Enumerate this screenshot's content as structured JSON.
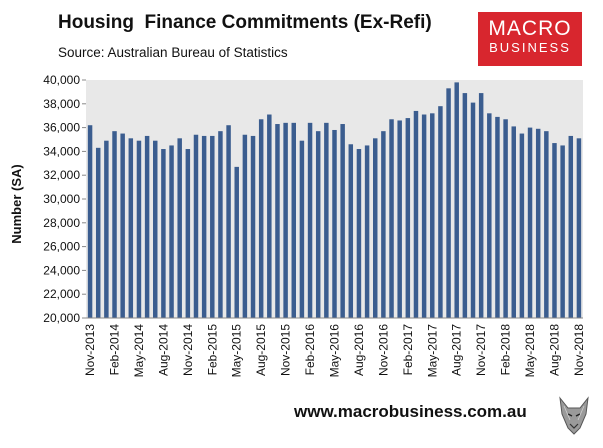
{
  "header": {
    "title": "Housing  Finance Commitments (Ex-Refi)",
    "subtitle": "Source: Australian Bureau of Statistics"
  },
  "logo": {
    "line1": "MACRO",
    "line2": "BUSINESS"
  },
  "footer": {
    "url": "www.macrobusiness.com.au"
  },
  "colors": {
    "bar": "#3b5d8f",
    "plot_bg": "#e8e8e8",
    "logo_bg": "#d8262e"
  },
  "chart_data": {
    "type": "bar",
    "ylabel": "Number (SA)",
    "xlabel": "",
    "ylim": [
      20000,
      40000
    ],
    "yticks": [
      20000,
      22000,
      24000,
      26000,
      28000,
      30000,
      32000,
      34000,
      36000,
      38000,
      40000
    ],
    "ytick_labels": [
      "20,000",
      "22,000",
      "24,000",
      "26,000",
      "28,000",
      "30,000",
      "32,000",
      "34,000",
      "36,000",
      "38,000",
      "40,000"
    ],
    "categories": [
      "Nov-2013",
      "Dec-2013",
      "Jan-2014",
      "Feb-2014",
      "Mar-2014",
      "Apr-2014",
      "May-2014",
      "Jun-2014",
      "Jul-2014",
      "Aug-2014",
      "Sep-2014",
      "Oct-2014",
      "Nov-2014",
      "Dec-2014",
      "Jan-2015",
      "Feb-2015",
      "Mar-2015",
      "Apr-2015",
      "May-2015",
      "Jun-2015",
      "Jul-2015",
      "Aug-2015",
      "Sep-2015",
      "Oct-2015",
      "Nov-2015",
      "Dec-2015",
      "Jan-2016",
      "Feb-2016",
      "Mar-2016",
      "Apr-2016",
      "May-2016",
      "Jun-2016",
      "Jul-2016",
      "Aug-2016",
      "Sep-2016",
      "Oct-2016",
      "Nov-2016",
      "Dec-2016",
      "Jan-2017",
      "Feb-2017",
      "Mar-2017",
      "Apr-2017",
      "May-2017",
      "Jun-2017",
      "Jul-2017",
      "Aug-2017",
      "Sep-2017",
      "Oct-2017",
      "Nov-2017",
      "Dec-2017",
      "Jan-2018",
      "Feb-2018",
      "Mar-2018",
      "Apr-2018",
      "May-2018",
      "Jun-2018",
      "Jul-2018",
      "Aug-2018",
      "Sep-2018",
      "Oct-2018",
      "Nov-2018"
    ],
    "x_tick_labels": [
      "Nov-2013",
      "Feb-2014",
      "May-2014",
      "Aug-2014",
      "Nov-2014",
      "Feb-2015",
      "May-2015",
      "Aug-2015",
      "Nov-2015",
      "Feb-2016",
      "May-2016",
      "Aug-2016",
      "Nov-2016",
      "Feb-2017",
      "May-2017",
      "Aug-2017",
      "Nov-2017",
      "Feb-2018",
      "May-2018",
      "Aug-2018",
      "Nov-2018"
    ],
    "values": [
      36200,
      34300,
      34900,
      35700,
      35500,
      35100,
      34900,
      35300,
      34900,
      34200,
      34500,
      35100,
      34200,
      35400,
      35300,
      35300,
      35700,
      36200,
      32700,
      35400,
      35300,
      36700,
      37100,
      36300,
      36400,
      36400,
      34900,
      36400,
      35700,
      36400,
      35800,
      36300,
      34600,
      34200,
      34500,
      35100,
      35700,
      36700,
      36600,
      36800,
      37400,
      37100,
      37200,
      37800,
      39300,
      39800,
      38900,
      38100,
      38900,
      37200,
      36900,
      36700,
      36100,
      35500,
      36000,
      35900,
      35700,
      34700,
      34500,
      35300,
      35100
    ],
    "grid": false,
    "legend": "none"
  }
}
